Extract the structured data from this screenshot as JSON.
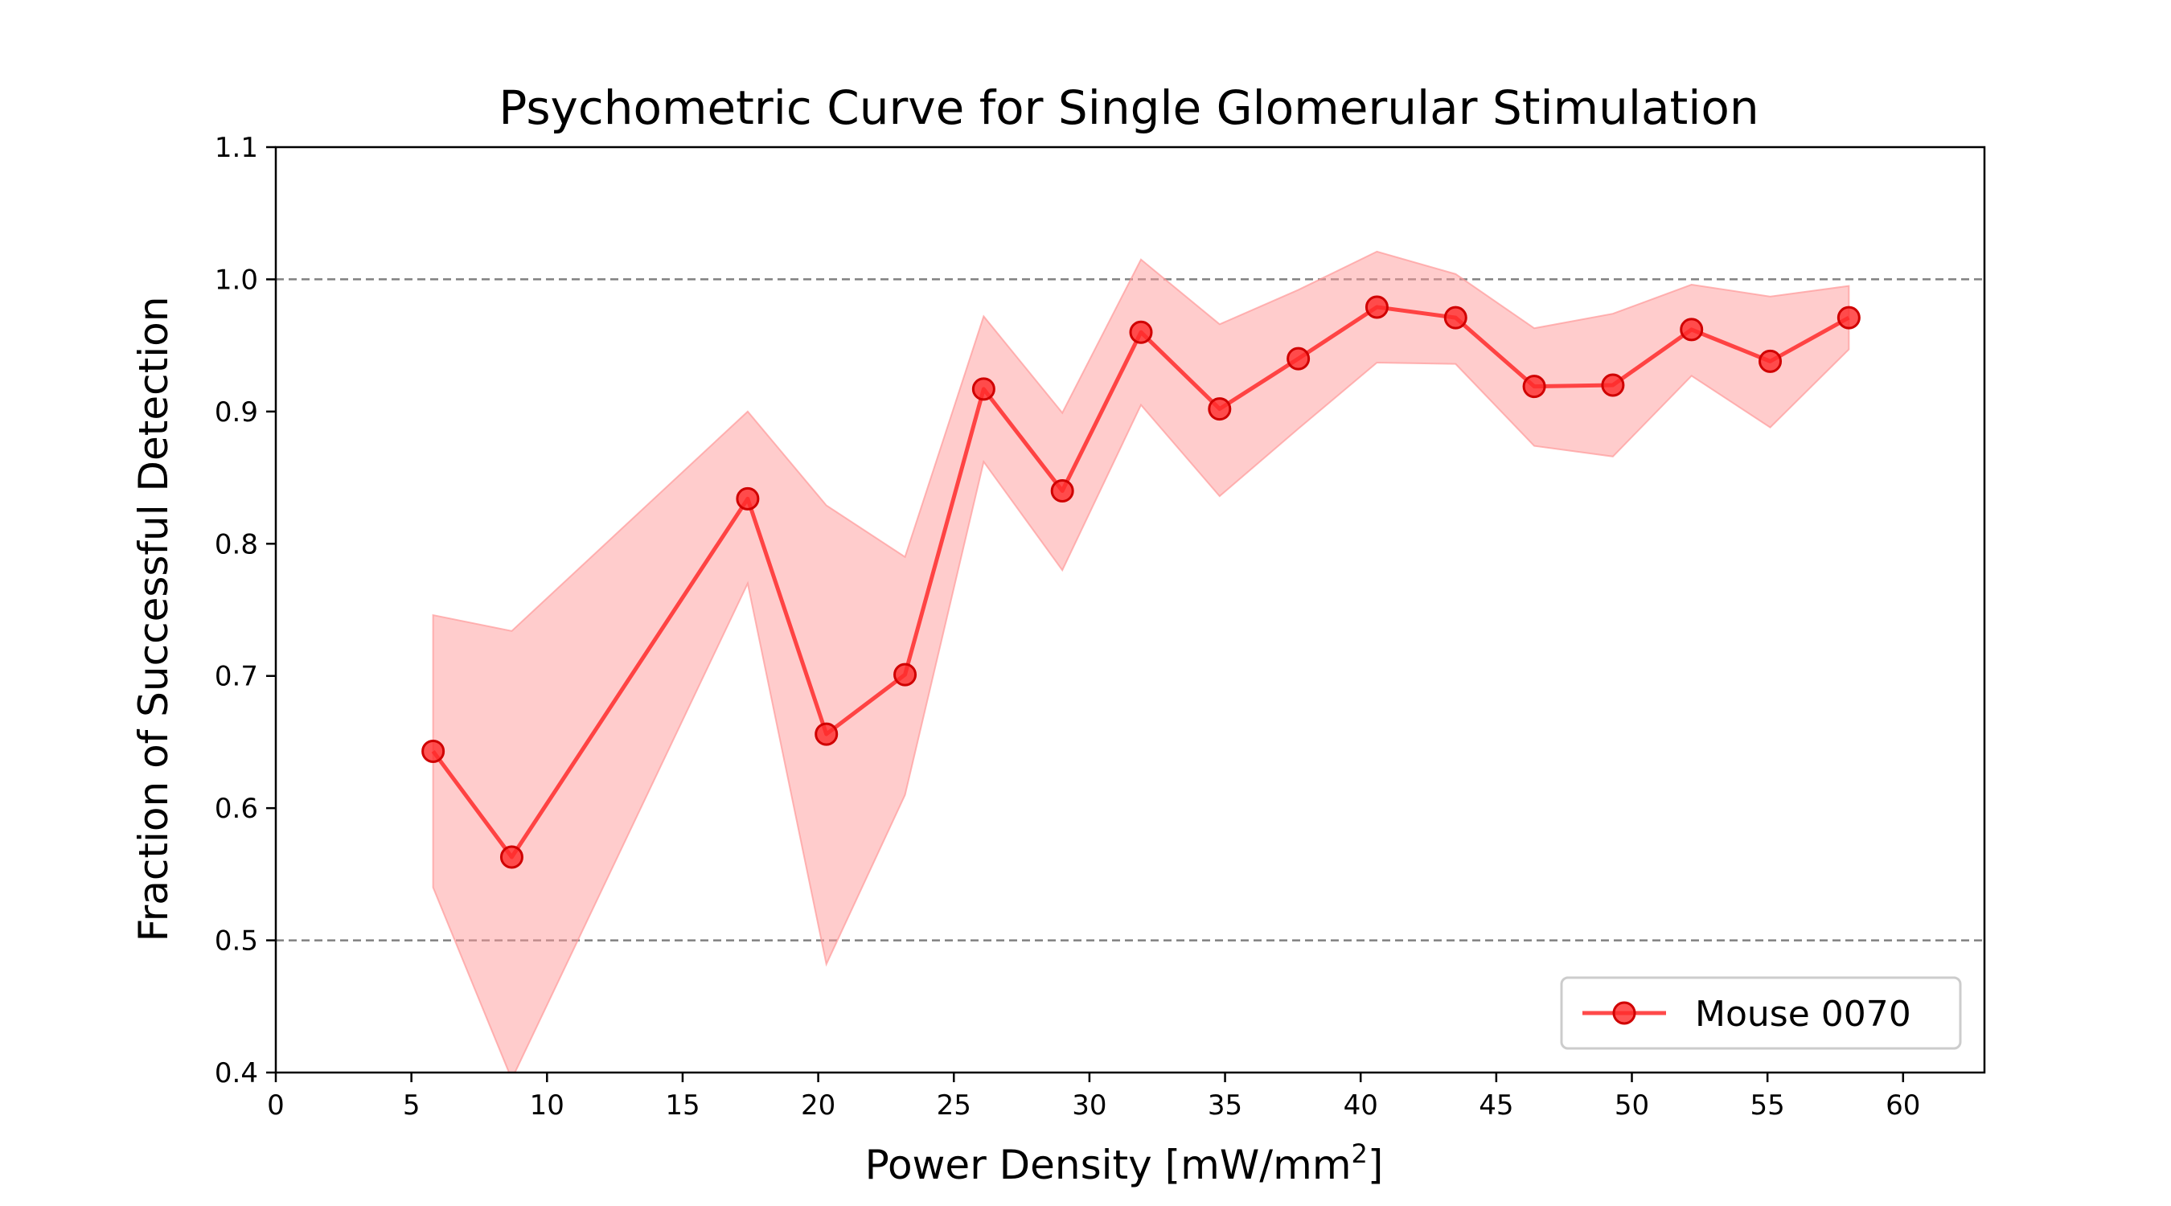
{
  "chart_data": {
    "type": "line",
    "title": "Psychometric Curve for Single Glomerular Stimulation",
    "xlabel": "Power Density [mW/mm",
    "xlabel_superscript": "2",
    "xlabel_suffix": "]",
    "ylabel": "Fraction of Successful Detection",
    "xlim": [
      0,
      63
    ],
    "ylim": [
      0.4,
      1.1
    ],
    "x_ticks": [
      "0",
      "5",
      "10",
      "15",
      "20",
      "25",
      "30",
      "35",
      "40",
      "45",
      "50",
      "55",
      "60"
    ],
    "y_ticks": [
      "0.4",
      "0.5",
      "0.6",
      "0.7",
      "0.8",
      "0.9",
      "1.0",
      "1.1"
    ],
    "reference_lines": [
      0.5,
      1.0
    ],
    "grid": false,
    "legend_position": "lower-right",
    "colors": {
      "series": "#ff2a2a",
      "band": "#ff9999",
      "reference": "#808080"
    },
    "series": [
      {
        "name": "Mouse 0070",
        "x": [
          5.8,
          8.7,
          17.4,
          20.3,
          23.2,
          26.1,
          29.0,
          31.9,
          34.8,
          37.7,
          40.6,
          43.5,
          46.4,
          49.3,
          52.2,
          55.1,
          58.0
        ],
        "y": [
          0.643,
          0.563,
          0.834,
          0.656,
          0.701,
          0.917,
          0.84,
          0.96,
          0.902,
          0.94,
          0.979,
          0.971,
          0.919,
          0.92,
          0.962,
          0.938,
          0.971
        ],
        "lower": [
          0.54,
          0.395,
          0.77,
          0.482,
          0.61,
          0.862,
          0.78,
          0.905,
          0.836,
          0.887,
          0.937,
          0.936,
          0.874,
          0.866,
          0.927,
          0.888,
          0.947
        ],
        "upper": [
          0.746,
          0.734,
          0.9,
          0.829,
          0.79,
          0.972,
          0.899,
          1.015,
          0.966,
          0.992,
          1.021,
          1.004,
          0.963,
          0.974,
          0.996,
          0.987,
          0.995
        ]
      }
    ]
  }
}
